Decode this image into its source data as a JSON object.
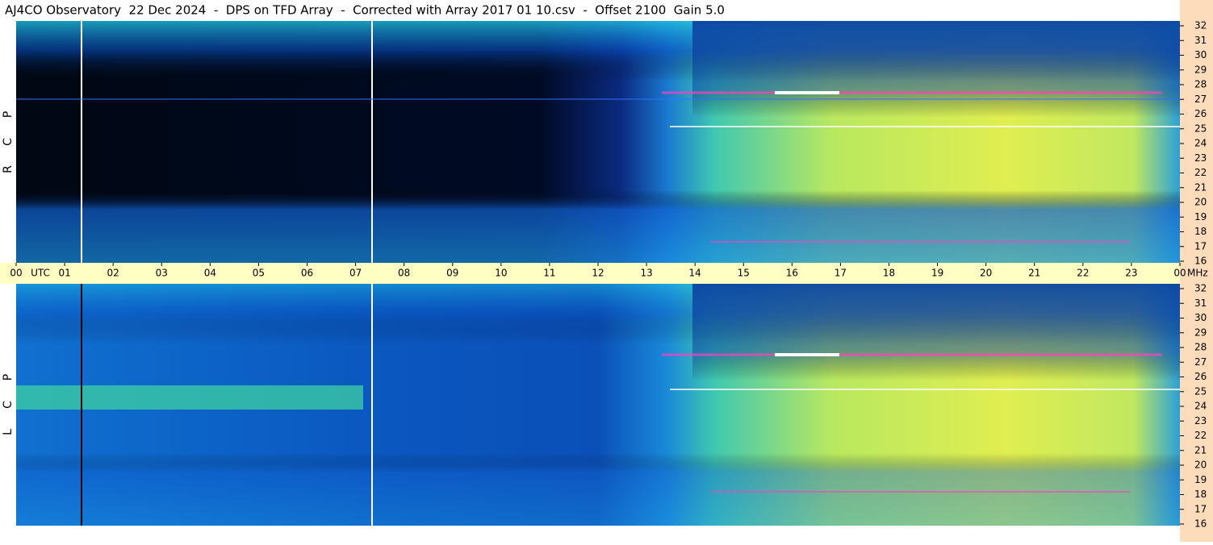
{
  "header": {
    "title": "AJ4CO Observatory  22 Dec 2024  -  DPS on TFD Array  -  Corrected with Array 2017 01 10.csv  -  Offset 2100  Gain 5.0"
  },
  "time_axis": {
    "hours": [
      "00",
      "01",
      "02",
      "03",
      "04",
      "05",
      "06",
      "07",
      "08",
      "09",
      "10",
      "11",
      "12",
      "13",
      "14",
      "15",
      "16",
      "17",
      "18",
      "19",
      "20",
      "21",
      "22",
      "23",
      "00"
    ],
    "utc_unit": "UTC",
    "freq_unit": "MHz"
  },
  "panels": [
    {
      "polarization": [
        "R",
        "C",
        "P"
      ],
      "freq_ticks": [
        "32",
        "31",
        "30",
        "29",
        "28",
        "27",
        "26",
        "25",
        "24",
        "23",
        "22",
        "21",
        "20",
        "19",
        "18",
        "17",
        "16"
      ]
    },
    {
      "polarization": [
        "L",
        "C",
        "P"
      ],
      "freq_ticks": [
        "32",
        "31",
        "30",
        "29",
        "28",
        "27",
        "26",
        "25",
        "24",
        "23",
        "22",
        "21",
        "20",
        "19",
        "18",
        "17",
        "16"
      ]
    }
  ]
}
